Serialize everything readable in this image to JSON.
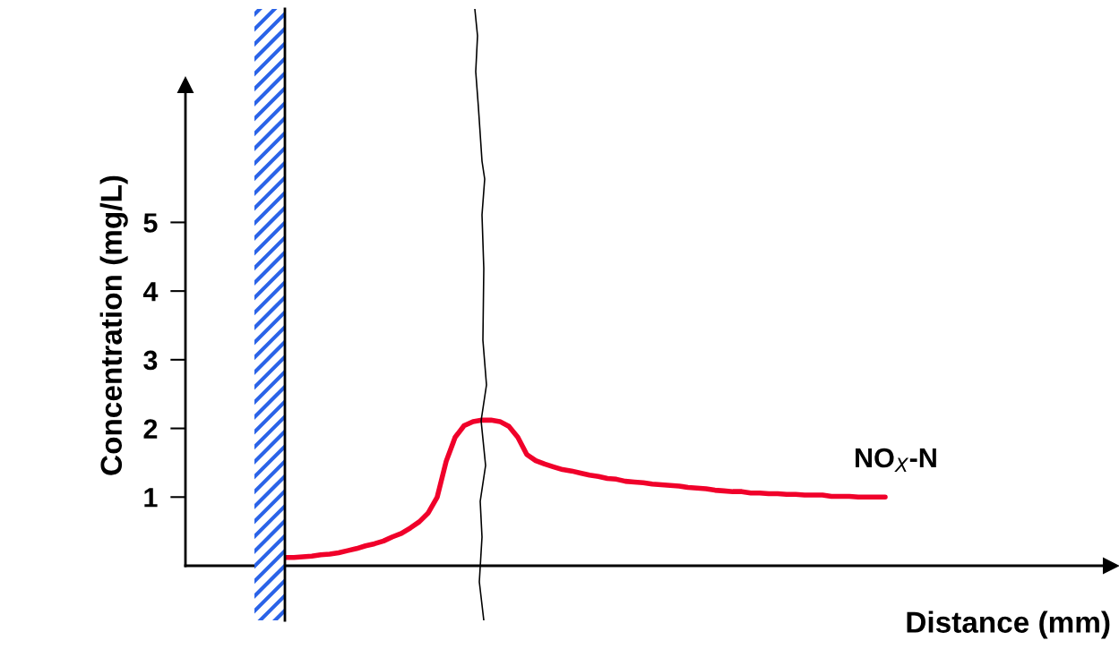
{
  "chart_data": {
    "type": "line",
    "ylabel": "Concentration (mg/L)",
    "xlabel": "Distance (mm)",
    "categories": [
      null,
      null,
      null,
      null,
      null,
      null,
      null,
      null,
      null,
      null,
      null,
      null,
      null,
      null,
      null,
      null,
      null,
      null,
      null,
      null,
      null,
      null,
      null,
      null,
      null,
      null,
      null,
      null,
      null,
      null,
      null,
      null,
      null,
      null,
      null,
      null,
      null,
      null,
      null,
      null,
      null,
      null,
      null,
      null,
      null,
      null,
      null,
      null,
      null,
      null,
      null,
      null,
      null,
      null,
      null,
      null,
      null,
      null,
      null,
      null,
      null,
      null,
      null,
      null,
      null,
      null,
      null,
      null,
      null,
      null,
      null,
      null,
      null,
      null,
      null,
      null,
      null,
      null,
      null,
      null,
      null,
      null,
      null,
      null,
      null,
      null,
      null,
      null,
      null,
      null,
      null,
      null,
      null,
      null,
      null,
      null,
      null,
      null,
      null,
      null,
      null,
      null,
      null,
      null
    ],
    "series": [
      {
        "name": "NO$_{X}$-N",
        "color": "#f0002a",
        "values": [
          null,
          null,
          null,
          null,
          null,
          null,
          null,
          null,
          null,
          null,
          null,
          0.12,
          0.12,
          0.13,
          0.14,
          0.16,
          0.17,
          0.19,
          0.22,
          0.25,
          0.29,
          0.32,
          0.36,
          0.42,
          0.47,
          0.55,
          0.64,
          0.77,
          1.0,
          1.52,
          1.87,
          2.04,
          2.1,
          2.12,
          2.12,
          2.1,
          2.03,
          1.87,
          1.62,
          1.53,
          1.48,
          1.44,
          1.4,
          1.38,
          1.35,
          1.32,
          1.3,
          1.27,
          1.26,
          1.23,
          1.22,
          1.21,
          1.19,
          1.18,
          1.17,
          1.16,
          1.14,
          1.13,
          1.12,
          1.1,
          1.09,
          1.08,
          1.08,
          1.06,
          1.06,
          1.05,
          1.05,
          1.04,
          1.04,
          1.03,
          1.03,
          1.03,
          1.01,
          1.01,
          1.01,
          1.0,
          1.0,
          1.0,
          1.0,
          null,
          null,
          null,
          null,
          null,
          null,
          null,
          null,
          null,
          null,
          null,
          null,
          null,
          null,
          null,
          null,
          null,
          null,
          null,
          null,
          null,
          null,
          null,
          null,
          null
        ]
      }
    ],
    "ylim": [
      0,
      7
    ],
    "yticks": [
      1,
      2,
      3,
      4,
      5
    ],
    "tick_labels": "y",
    "grid": false,
    "legend": false,
    "marker": "none",
    "line_style": "solid"
  }
}
